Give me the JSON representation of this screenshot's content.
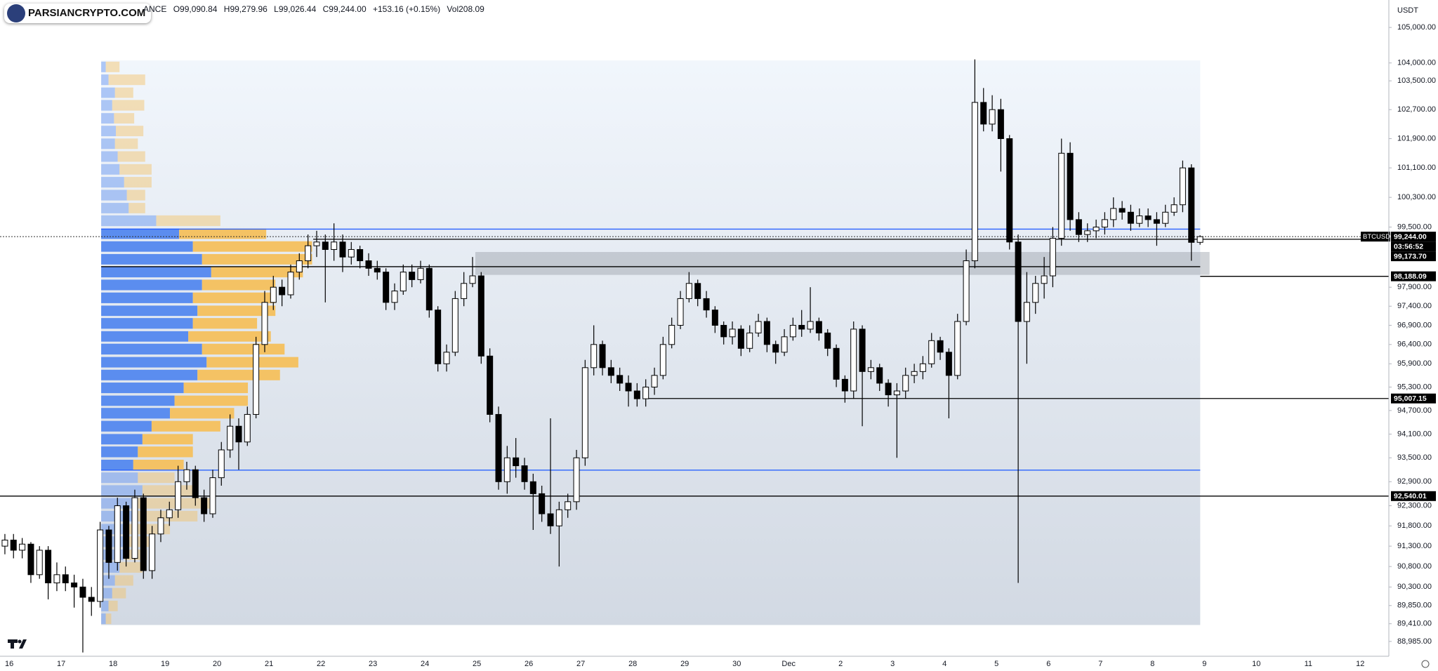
{
  "chart_data": {
    "type": "candlestick",
    "watermark": "PARSIANCRYPTO.COM",
    "header": {
      "exchange": "ANCE",
      "items": [
        {
          "label": "O",
          "value": "99,090.84"
        },
        {
          "label": "H",
          "value": "99,279.96"
        },
        {
          "label": "L",
          "value": "99,026.44"
        },
        {
          "label": "C",
          "value": "99,244.00"
        }
      ],
      "change": "+153.16 (+0.15%)",
      "volume_label": "Vol",
      "volume": "208.09"
    },
    "currency": "USDT",
    "log_scale": true,
    "grid": false,
    "up_color": "#ffffff",
    "down_color": "#000000",
    "xlim": [
      15.823,
      42.55
    ],
    "xticks": [
      16,
      17,
      18,
      19,
      20,
      21,
      22,
      23,
      24,
      25,
      26,
      27,
      28,
      29,
      30,
      {
        "value": 31,
        "label": "Dec"
      },
      {
        "value": 32,
        "label": "2"
      },
      {
        "value": 33,
        "label": "3"
      },
      {
        "value": 34,
        "label": "4"
      },
      {
        "value": 35,
        "label": "5"
      },
      {
        "value": 36,
        "label": "6"
      },
      {
        "value": 37,
        "label": "7"
      },
      {
        "value": 38,
        "label": "8"
      },
      {
        "value": 39,
        "label": "9"
      },
      {
        "value": 40,
        "label": "10"
      },
      {
        "value": 41,
        "label": "11"
      },
      {
        "value": 42,
        "label": "12"
      }
    ],
    "ylim": [
      88630,
      105780
    ],
    "yticks": [
      {
        "value": 105000,
        "label": "105,000.00"
      },
      {
        "value": 104000,
        "label": "104,000.00"
      },
      {
        "value": 103500,
        "label": "103,500.00"
      },
      {
        "value": 102700,
        "label": "102,700.00"
      },
      {
        "value": 101900,
        "label": "101,900.00"
      },
      {
        "value": 101100,
        "label": "101,100.00"
      },
      {
        "value": 100300,
        "label": "100,300.00"
      },
      {
        "value": 99500,
        "label": "99,500.00"
      },
      {
        "value": 97900,
        "label": "97,900.00"
      },
      {
        "value": 97400,
        "label": "97,400.00"
      },
      {
        "value": 96900,
        "label": "96,900.00"
      },
      {
        "value": 96400,
        "label": "96,400.00"
      },
      {
        "value": 95900,
        "label": "95,900.00"
      },
      {
        "value": 95300,
        "label": "95,300.00"
      },
      {
        "value": 94700,
        "label": "94,700.00"
      },
      {
        "value": 94100,
        "label": "94,100.00"
      },
      {
        "value": 93500,
        "label": "93,500.00"
      },
      {
        "value": 92900,
        "label": "92,900.00"
      },
      {
        "value": 92300,
        "label": "92,300.00"
      },
      {
        "value": 91800,
        "label": "91,800.00"
      },
      {
        "value": 91300,
        "label": "91,300.00"
      },
      {
        "value": 90800,
        "label": "90,800.00"
      },
      {
        "value": 90300,
        "label": "90,300.00"
      },
      {
        "value": 89850,
        "label": "89,850.00"
      },
      {
        "value": 89410,
        "label": "89,410.00"
      },
      {
        "value": 88985,
        "label": "88,985.00"
      }
    ],
    "x": [
      15.917,
      16.083,
      16.25,
      16.417,
      16.583,
      16.75,
      16.917,
      17.083,
      17.25,
      17.417,
      17.583,
      17.75,
      17.917,
      18.083,
      18.25,
      18.417,
      18.583,
      18.75,
      18.917,
      19.083,
      19.25,
      19.417,
      19.583,
      19.75,
      19.917,
      20.083,
      20.25,
      20.417,
      20.583,
      20.75,
      20.917,
      21.083,
      21.25,
      21.417,
      21.583,
      21.75,
      21.917,
      22.083,
      22.25,
      22.417,
      22.583,
      22.75,
      22.917,
      23.083,
      23.25,
      23.417,
      23.583,
      23.75,
      23.917,
      24.083,
      24.25,
      24.417,
      24.583,
      24.75,
      24.917,
      25.083,
      25.25,
      25.417,
      25.583,
      25.75,
      25.917,
      26.083,
      26.25,
      26.417,
      26.583,
      26.75,
      26.917,
      27.083,
      27.25,
      27.417,
      27.583,
      27.75,
      27.917,
      28.083,
      28.25,
      28.417,
      28.583,
      28.75,
      28.917,
      29.083,
      29.25,
      29.417,
      29.583,
      29.75,
      29.917,
      30.083,
      30.25,
      30.417,
      30.583,
      30.75,
      30.917,
      31.083,
      31.25,
      31.417,
      31.583,
      31.75,
      31.917,
      32.083,
      32.25,
      32.417,
      32.583,
      32.75,
      32.917,
      33.083,
      33.25,
      33.417,
      33.583,
      33.75,
      33.917,
      34.083,
      34.25,
      34.417,
      34.583,
      34.75,
      34.917,
      35.083,
      35.25,
      35.417,
      35.583,
      35.75,
      35.917,
      36.083,
      36.25,
      36.417,
      36.583,
      36.75,
      36.917,
      37.083,
      37.25,
      37.417,
      37.583,
      37.75,
      37.917,
      38.083,
      38.25,
      38.417,
      38.583,
      38.75,
      38.917
    ],
    "open": [
      91300,
      91450,
      91200,
      91350,
      90600,
      91200,
      90400,
      90600,
      90400,
      90300,
      90050,
      89950,
      91700,
      90900,
      92300,
      91000,
      92500,
      90700,
      91600,
      92000,
      92200,
      92900,
      93200,
      92500,
      92100,
      93000,
      93700,
      94300,
      93900,
      94600,
      96400,
      97500,
      97900,
      97700,
      98300,
      98600,
      99000,
      99100,
      98900,
      99100,
      98700,
      98900,
      98600,
      98400,
      98300,
      97500,
      97800,
      98300,
      98100,
      98400,
      97300,
      95900,
      96200,
      97600,
      98000,
      98200,
      96100,
      94600,
      92900,
      93500,
      93300,
      92900,
      92600,
      92100,
      91800,
      92200,
      92400,
      93500,
      95800,
      96400,
      95800,
      95600,
      95400,
      95200,
      95000,
      95300,
      95600,
      96400,
      96900,
      97600,
      98000,
      97600,
      97300,
      96900,
      96600,
      96800,
      96300,
      96700,
      97000,
      96400,
      96200,
      96600,
      96900,
      96800,
      97000,
      96700,
      96300,
      95500,
      95200,
      96800,
      95700,
      95800,
      95400,
      95100,
      95200,
      95600,
      95700,
      95900,
      96500,
      96200,
      95600,
      97000,
      98600,
      102900,
      102300,
      102700,
      101900,
      99100,
      97000,
      97500,
      98000,
      98200,
      99200,
      101500,
      99700,
      99300,
      99400,
      99500,
      99700,
      100000,
      99900,
      99600,
      99800,
      99700,
      99600,
      99900,
      100100,
      101100,
      99090.84
    ],
    "high": [
      91600,
      91600,
      91500,
      91400,
      91300,
      91300,
      90900,
      90800,
      90600,
      90500,
      90300,
      91900,
      91800,
      92500,
      92400,
      92700,
      92600,
      91800,
      92200,
      92400,
      93300,
      93400,
      93300,
      92700,
      93200,
      93900,
      94600,
      94500,
      94800,
      96600,
      97800,
      98200,
      98100,
      98500,
      98800,
      99300,
      99400,
      99300,
      99600,
      99300,
      99100,
      99000,
      98800,
      98600,
      98400,
      98000,
      98500,
      98500,
      98600,
      98500,
      97400,
      96400,
      97800,
      98300,
      98700,
      98300,
      96300,
      94800,
      93800,
      94000,
      93500,
      93100,
      92800,
      94500,
      92400,
      92600,
      93700,
      96000,
      96900,
      96500,
      96000,
      95800,
      95600,
      95400,
      95500,
      95800,
      96600,
      97100,
      97800,
      98300,
      98100,
      97800,
      97400,
      97000,
      97000,
      96900,
      96900,
      97200,
      97100,
      96500,
      96800,
      97100,
      97300,
      97900,
      97100,
      96800,
      96400,
      95600,
      97000,
      96900,
      96000,
      95900,
      95500,
      95400,
      95800,
      95900,
      96100,
      96700,
      96600,
      96300,
      97200,
      98900,
      104100,
      103300,
      103100,
      103000,
      102000,
      99300,
      98300,
      98200,
      98700,
      99500,
      101900,
      101800,
      99900,
      99600,
      99700,
      99900,
      100300,
      100200,
      100100,
      100000,
      100000,
      99900,
      100100,
      100300,
      101300,
      101200,
      99279.96
    ],
    "low": [
      91100,
      91000,
      91000,
      90400,
      90500,
      90000,
      90200,
      90200,
      89800,
      88720,
      89600,
      89800,
      90500,
      90700,
      90800,
      90900,
      90500,
      90500,
      91400,
      91800,
      92000,
      92700,
      92300,
      91900,
      92000,
      92800,
      93500,
      93200,
      93800,
      94500,
      96200,
      97300,
      97400,
      97600,
      98100,
      98400,
      98700,
      97500,
      98600,
      98300,
      98500,
      98400,
      98200,
      98100,
      97300,
      97300,
      97700,
      97900,
      98000,
      97100,
      95700,
      95700,
      96100,
      97400,
      97900,
      95900,
      94400,
      92700,
      92600,
      93000,
      92700,
      91700,
      91900,
      91600,
      90800,
      92000,
      92200,
      93300,
      95600,
      95600,
      95400,
      95200,
      94800,
      94800,
      94800,
      95100,
      95500,
      96300,
      96800,
      97500,
      97400,
      97100,
      96700,
      96400,
      96400,
      96100,
      96200,
      96600,
      96200,
      95900,
      96100,
      96500,
      96600,
      96700,
      96500,
      96100,
      95300,
      94900,
      95000,
      94300,
      95500,
      95200,
      94800,
      93500,
      95000,
      95400,
      95500,
      95800,
      96000,
      94500,
      95500,
      96900,
      98400,
      102100,
      102100,
      101000,
      98900,
      90400,
      95900,
      97200,
      97600,
      97900,
      99000,
      99400,
      99100,
      99100,
      99200,
      99300,
      99500,
      99700,
      99400,
      99500,
      99500,
      99000,
      99500,
      99800,
      99900,
      98600,
      99026.44
    ],
    "close": [
      91450,
      91200,
      91350,
      90600,
      91200,
      90400,
      90600,
      90400,
      90300,
      90050,
      89950,
      91700,
      90900,
      92300,
      91000,
      92500,
      90700,
      91600,
      92000,
      92200,
      92900,
      93200,
      92500,
      92100,
      93000,
      93700,
      94300,
      93900,
      94600,
      96400,
      97500,
      97900,
      97700,
      98300,
      98600,
      99000,
      99100,
      98900,
      99100,
      98700,
      98900,
      98600,
      98400,
      98300,
      97500,
      97800,
      98300,
      98100,
      98400,
      97300,
      95900,
      96200,
      97600,
      98000,
      98200,
      96100,
      94600,
      92900,
      93500,
      93300,
      92900,
      92600,
      92100,
      91800,
      92200,
      92400,
      93500,
      95800,
      96400,
      95800,
      95600,
      95400,
      95200,
      95000,
      95300,
      95600,
      96400,
      96900,
      97600,
      98000,
      97600,
      97300,
      96900,
      96600,
      96800,
      96300,
      96700,
      97000,
      96400,
      96200,
      96600,
      96900,
      96800,
      97000,
      96700,
      96300,
      95500,
      95200,
      96800,
      95700,
      95800,
      95400,
      95100,
      95200,
      95600,
      95700,
      95900,
      96500,
      96200,
      95600,
      97000,
      98600,
      102900,
      102300,
      102700,
      101900,
      99100,
      97000,
      97500,
      98000,
      98200,
      99200,
      101500,
      99700,
      99300,
      99400,
      99500,
      99700,
      100000,
      99900,
      99600,
      99800,
      99700,
      99600,
      99900,
      100100,
      101100,
      99090.84,
      99244
    ],
    "profile": {
      "x": [
        17.77,
        38.92
      ],
      "y": [
        89380,
        104070
      ],
      "buy_color": "#5b8def",
      "sell_color": "#f4c264",
      "va_line_color": "#2962ff",
      "poc_color": "#000000",
      "value_area": [
        93190,
        99445
      ],
      "poc": 98443,
      "levels": [
        103890,
        103530,
        103170,
        102820,
        102460,
        102110,
        101760,
        101410,
        101060,
        100710,
        100360,
        100010,
        99670,
        99320,
        98980,
        98640,
        98300,
        97960,
        97620,
        97280,
        96950,
        96610,
        96280,
        95940,
        95610,
        95280,
        94950,
        94630,
        94300,
        93970,
        93650,
        93320,
        93000,
        92680,
        92360,
        92040,
        91720,
        91410,
        91090,
        90780,
        90460,
        90150,
        89840,
        89530
      ],
      "buy": [
        5,
        8,
        15,
        12,
        14,
        16,
        15,
        18,
        20,
        25,
        28,
        30,
        60,
        85,
        100,
        110,
        120,
        110,
        100,
        105,
        100,
        95,
        110,
        115,
        105,
        90,
        80,
        75,
        55,
        45,
        40,
        35,
        40,
        45,
        40,
        35,
        30,
        28,
        25,
        20,
        15,
        12,
        8,
        5
      ],
      "sell": [
        15,
        40,
        20,
        35,
        22,
        30,
        25,
        30,
        35,
        30,
        20,
        18,
        70,
        95,
        130,
        120,
        100,
        80,
        90,
        85,
        70,
        90,
        90,
        100,
        90,
        70,
        80,
        70,
        75,
        55,
        60,
        55,
        40,
        60,
        80,
        70,
        45,
        30,
        25,
        25,
        20,
        15,
        10,
        6
      ]
    },
    "zone": {
      "x": [
        24.97,
        39.1
      ],
      "y": [
        98225,
        98834
      ]
    },
    "price_lines": [
      {
        "value": 99173.7,
        "label": "99,173.70",
        "x": [
          21.85,
          42.55
        ]
      },
      {
        "value": 98188.09,
        "label": "98,188.09",
        "x": [
          38.92,
          42.55
        ]
      },
      {
        "value": 95007.15,
        "label": "95,007.15",
        "x": [
          28.21,
          42.55
        ]
      },
      {
        "value": 92540.01,
        "label": "92,540.01",
        "x": [
          15.823,
          42.55
        ]
      }
    ],
    "last_price": {
      "value": 99244,
      "label": "99,244.00",
      "symbol": "BTCUSDT",
      "countdown": "03:56:52"
    }
  }
}
